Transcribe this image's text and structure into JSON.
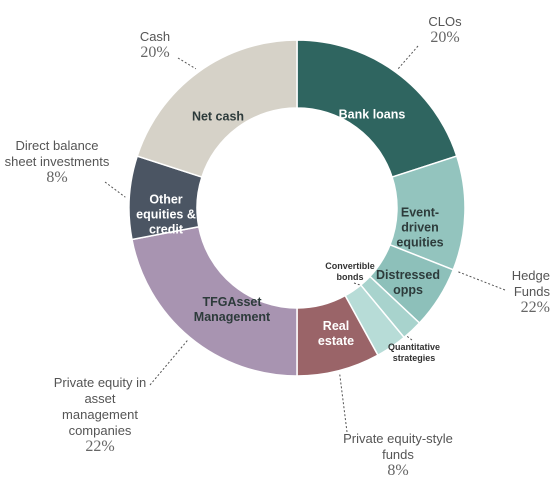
{
  "chart_data": {
    "type": "donut",
    "categories": [
      "Bank loans",
      "Event-driven equities",
      "Distressed opps",
      "Convertible bonds",
      "Quantitative strategies",
      "Real estate",
      "TFGAsset Management",
      "Other equities & credit",
      "Net cash"
    ],
    "values": [
      20,
      11,
      6,
      2,
      3,
      8,
      22,
      8,
      20
    ],
    "colors": [
      "#2f6560",
      "#93c4be",
      "#8dc0ba",
      "#a8d3cd",
      "#b7dcd7",
      "#9a6468",
      "#a894b1",
      "#4b5563",
      "#d6d2c8"
    ],
    "groups": {
      "names": [
        "CLOs",
        "Hedge Funds",
        "Private equity-style funds",
        "Private equity in asset management companies",
        "Direct balance sheet investments",
        "Cash"
      ],
      "values": [
        20,
        22,
        8,
        22,
        8,
        20
      ],
      "value_labels": [
        "20%",
        "22%",
        "8%",
        "22%",
        "8%",
        "20%"
      ]
    }
  }
}
